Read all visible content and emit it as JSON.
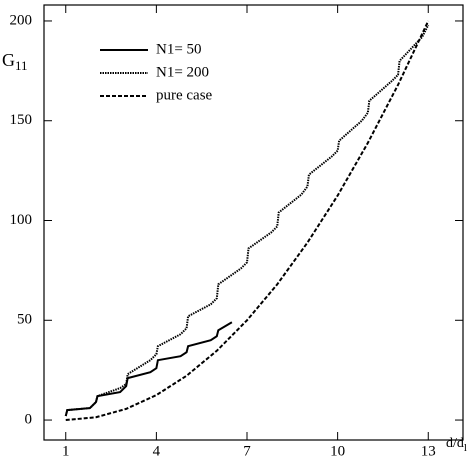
{
  "chart_data": {
    "type": "line",
    "ylabel": "G",
    "ylabel_sub": "11",
    "xlabel": "d/d",
    "xlabel_sub": "l",
    "xlim": [
      0.28,
      14.15
    ],
    "xticks": [
      1,
      4,
      7,
      10,
      13
    ],
    "ylim": [
      -10,
      208
    ],
    "yticks": [
      0,
      50,
      100,
      150,
      200
    ],
    "legend": "upper left",
    "series": [
      {
        "name": "N1= 50",
        "color": "#000000",
        "style": "solid",
        "x": [
          1,
          1.05,
          1.8,
          2,
          2.05,
          2.8,
          3,
          3.05,
          3.8,
          4,
          4.05,
          4.8,
          5,
          5.05,
          5.8,
          6,
          6.05,
          6.5
        ],
        "values": [
          2,
          5,
          6,
          9,
          12,
          14,
          17,
          21,
          24,
          26,
          30,
          32,
          34,
          37,
          40,
          42,
          45,
          49
        ]
      },
      {
        "name": "N1= 200",
        "color": "#000000",
        "style": "dotted",
        "x": [
          1,
          1.05,
          1.8,
          2,
          2.05,
          2.8,
          3,
          3.05,
          3.8,
          4,
          4.05,
          4.8,
          5,
          5.05,
          5.8,
          6,
          6.05,
          6.8,
          7,
          7.05,
          7.8,
          8,
          8.05,
          8.8,
          9,
          9.05,
          9.8,
          10,
          10.05,
          10.8,
          11,
          11.05,
          11.8,
          12,
          12.05,
          12.8,
          13
        ],
        "values": [
          2,
          5,
          6,
          9,
          12,
          16,
          18,
          23,
          30,
          33,
          37,
          43,
          46,
          52,
          58,
          61,
          68,
          76,
          79,
          86,
          94,
          97,
          104,
          113,
          117,
          123,
          132,
          135,
          140,
          150,
          154,
          160,
          170,
          173,
          180,
          192,
          198
        ]
      },
      {
        "name": "pure case",
        "color": "#000000",
        "style": "dashed",
        "x": [
          1,
          2,
          3,
          4,
          5,
          6,
          7,
          8,
          9,
          10,
          11,
          12,
          13
        ],
        "values": [
          0,
          1.4,
          5.6,
          12.5,
          22.2,
          34.7,
          50,
          68,
          88.9,
          112.5,
          138.9,
          168,
          200
        ]
      }
    ]
  }
}
